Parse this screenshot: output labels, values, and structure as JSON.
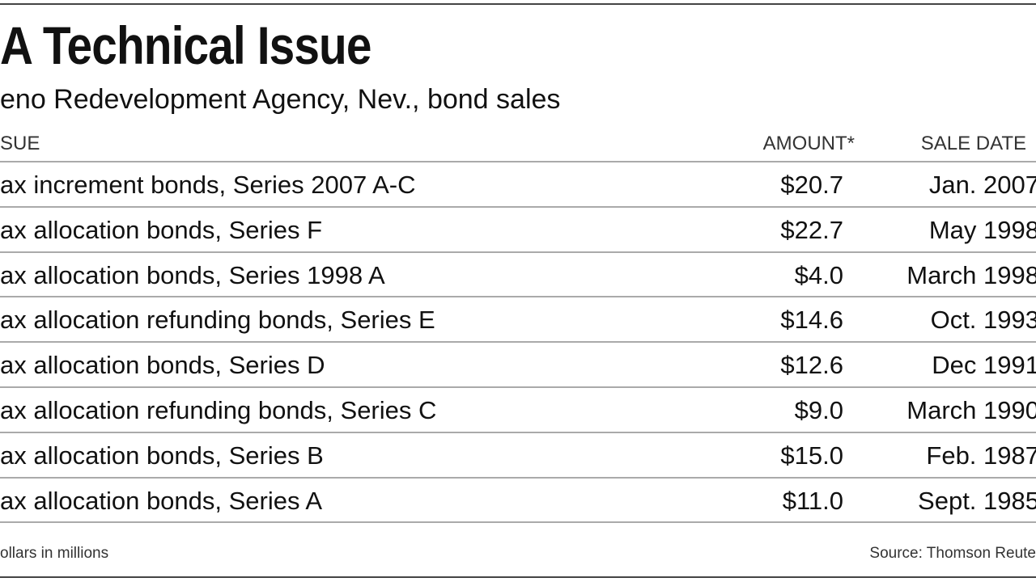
{
  "header": {
    "title": "A Technical Issue",
    "subtitle": "eno Redevelopment Agency, Nev., bond sales"
  },
  "table": {
    "columns": [
      "SUE",
      "AMOUNT*",
      "SALE DATE"
    ],
    "rows": [
      [
        "ax increment bonds, Series 2007 A-C",
        "$20.7",
        "Jan. 2007"
      ],
      [
        "ax allocation bonds, Series F",
        "$22.7",
        "May 1998"
      ],
      [
        "ax allocation bonds, Series 1998 A",
        "$4.0",
        "March 1998"
      ],
      [
        "ax allocation refunding bonds, Series E",
        "$14.6",
        "Oct. 1993"
      ],
      [
        "ax allocation bonds, Series D",
        "$12.6",
        "Dec 1991"
      ],
      [
        "ax allocation refunding bonds, Series C",
        "$9.0",
        "March 1990"
      ],
      [
        "ax allocation bonds, Series B",
        "$15.0",
        "Feb. 1987"
      ],
      [
        "ax allocation bonds, Series A",
        "$11.0",
        "Sept. 1985"
      ]
    ]
  },
  "footer": {
    "note": "ollars in millions",
    "source": "Source: Thomson Reute"
  }
}
